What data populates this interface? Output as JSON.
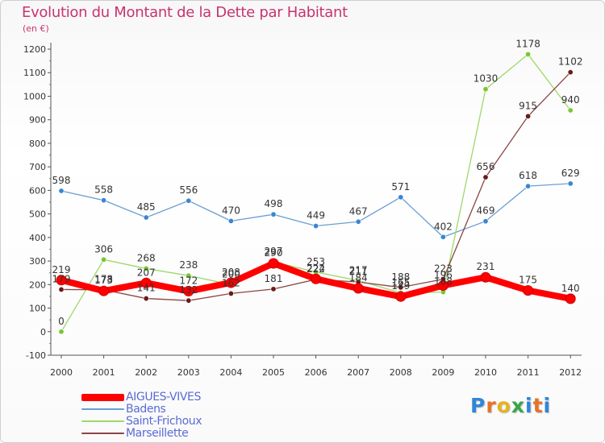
{
  "header": {
    "title": "Evolution du Montant de la Dette par Habitant",
    "subtitle": "(en €)"
  },
  "brand": {
    "letters": [
      "P",
      "r",
      "o",
      "x",
      "i",
      "t",
      "i"
    ]
  },
  "chart_data": {
    "type": "line",
    "title": "Evolution du Montant de la Dette par Habitant",
    "subtitle": "(en €)",
    "xlabel": "",
    "ylabel": "",
    "x": [
      "2000",
      "2001",
      "2002",
      "2003",
      "2004",
      "2005",
      "2006",
      "2007",
      "2008",
      "2009",
      "2010",
      "2011",
      "2012"
    ],
    "ylim": [
      -100,
      1200
    ],
    "yticks": [
      -100,
      0,
      100,
      200,
      300,
      400,
      500,
      600,
      700,
      800,
      900,
      1000,
      1100,
      1200
    ],
    "grid": false,
    "legend_position": "bottom-left",
    "series": [
      {
        "name": "AIGUES-VIVES",
        "color": "#ff0000",
        "emphasis": true,
        "values": [
          219,
          173,
          207,
          172,
          208,
          290,
          224,
          184,
          149,
          196,
          231,
          175,
          140
        ],
        "labels": [
          "219",
          "173",
          "207",
          "172",
          "208",
          "290",
          "224",
          "184",
          "149",
          "196",
          "231",
          "175",
          "140"
        ]
      },
      {
        "name": "Badens",
        "color": "#6a9ed4",
        "marker_color": "#3a86d1",
        "values": [
          598,
          558,
          485,
          556,
          470,
          498,
          449,
          467,
          571,
          402,
          469,
          618,
          629
        ],
        "labels": [
          "598",
          "558",
          "485",
          "556",
          "470",
          "498",
          "449",
          "467",
          "571",
          "402",
          "469",
          "618",
          "629"
        ]
      },
      {
        "name": "Saint-Frichoux",
        "color": "#9ed86a",
        "marker_color": "#78c832",
        "values": [
          0,
          306,
          268,
          238,
          200,
          297,
          253,
          217,
          165,
          168,
          1030,
          1178,
          940
        ],
        "labels": [
          "0",
          "306",
          "268",
          "238",
          "200",
          "297",
          "253",
          "217",
          "165",
          "168",
          "1030",
          "1178",
          "940"
        ]
      },
      {
        "name": "Marseillette",
        "color": "#8b4545",
        "marker_color": "#6b1a1a",
        "values": [
          179,
          178,
          141,
          132,
          162,
          181,
          222,
          211,
          188,
          223,
          656,
          915,
          1102
        ],
        "labels": [
          "179",
          "178",
          "141",
          "132",
          "162",
          "181",
          "222",
          "211",
          "188",
          "223",
          "656",
          "915",
          "1102"
        ]
      }
    ]
  }
}
